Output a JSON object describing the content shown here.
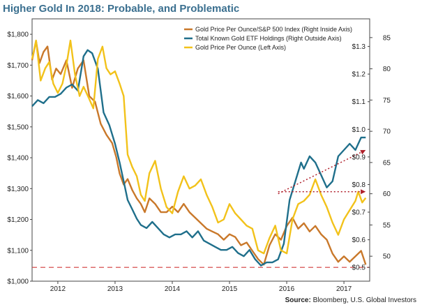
{
  "chart_data": {
    "type": "line",
    "title": "Higher Gold In 2018: Probable, and Problematic",
    "source_label": "Source:",
    "source_text": "Bloomberg, U.S. Global Investors",
    "x_ticks": [
      "2012",
      "2013",
      "2014",
      "2015",
      "2016",
      "2017"
    ],
    "x_tick_values": [
      2012.0,
      2013.0,
      2014.0,
      2015.0,
      2016.0,
      2017.0
    ],
    "xlim": [
      2011.55,
      2017.45
    ],
    "left_axis": {
      "ylim": [
        1000,
        1850
      ],
      "ticks": [
        1000,
        1100,
        1200,
        1300,
        1400,
        1500,
        1600,
        1700,
        1800
      ],
      "tick_labels": [
        "$1,000",
        "$1,100",
        "$1,200",
        "$1,300",
        "$1,400",
        "$1,500",
        "$1,600",
        "$1,700",
        "$1,800"
      ]
    },
    "right_inside_axis": {
      "ylim": [
        0.45,
        1.4
      ],
      "ticks": [
        0.5,
        0.6,
        0.7,
        0.8,
        0.9,
        1.0,
        1.1,
        1.2,
        1.3
      ],
      "tick_labels": [
        "$0.5",
        "$0.6",
        "$0.7",
        "$0.8",
        "$0.9",
        "$1.0",
        "$1.1",
        "$1.2",
        "$1.3"
      ]
    },
    "right_outside_axis": {
      "ylim": [
        46,
        88
      ],
      "ticks": [
        50,
        55,
        60,
        65,
        70,
        75,
        80,
        85
      ],
      "tick_labels": [
        "50",
        "55",
        "60",
        "65",
        "70",
        "75",
        "80",
        "85"
      ]
    },
    "series": [
      {
        "name": "Gold Price Per Ounce/S&P 500 Index (Right Inside Axis)",
        "axis": "right_inside",
        "color": "#c9782a",
        "x": [
          2011.55,
          2011.62,
          2011.68,
          2011.75,
          2011.82,
          2011.9,
          2011.97,
          2012.05,
          2012.15,
          2012.25,
          2012.35,
          2012.45,
          2012.55,
          2012.65,
          2012.75,
          2012.85,
          2012.95,
          2013.02,
          2013.08,
          2013.15,
          2013.22,
          2013.3,
          2013.38,
          2013.45,
          2013.52,
          2013.6,
          2013.7,
          2013.8,
          2013.9,
          2014.0,
          2014.1,
          2014.2,
          2014.3,
          2014.4,
          2014.5,
          2014.6,
          2014.7,
          2014.8,
          2014.9,
          2015.0,
          2015.1,
          2015.2,
          2015.3,
          2015.4,
          2015.5,
          2015.6,
          2015.7,
          2015.8,
          2015.9,
          2016.0,
          2016.1,
          2016.2,
          2016.3,
          2016.4,
          2016.5,
          2016.6,
          2016.7,
          2016.8,
          2016.9,
          2017.0,
          2017.1,
          2017.2,
          2017.3,
          2017.38
        ],
        "values": [
          1.25,
          1.32,
          1.24,
          1.28,
          1.3,
          1.18,
          1.22,
          1.2,
          1.25,
          1.15,
          1.22,
          1.25,
          1.12,
          1.1,
          1.02,
          0.98,
          0.95,
          0.9,
          0.84,
          0.8,
          0.82,
          0.78,
          0.75,
          0.73,
          0.7,
          0.75,
          0.73,
          0.7,
          0.7,
          0.72,
          0.7,
          0.73,
          0.7,
          0.68,
          0.66,
          0.64,
          0.63,
          0.62,
          0.6,
          0.62,
          0.61,
          0.58,
          0.59,
          0.56,
          0.53,
          0.51,
          0.58,
          0.62,
          0.6,
          0.65,
          0.68,
          0.64,
          0.66,
          0.63,
          0.65,
          0.62,
          0.6,
          0.55,
          0.52,
          0.54,
          0.52,
          0.54,
          0.56,
          0.51
        ]
      },
      {
        "name": "Total Known Gold ETF Holdings (Right Outside Axis)",
        "axis": "right_outside",
        "color": "#1f6f8b",
        "x": [
          2011.55,
          2011.65,
          2011.75,
          2011.85,
          2011.95,
          2012.05,
          2012.15,
          2012.25,
          2012.35,
          2012.45,
          2012.52,
          2012.6,
          2012.7,
          2012.8,
          2012.9,
          2013.0,
          2013.08,
          2013.15,
          2013.22,
          2013.3,
          2013.38,
          2013.45,
          2013.55,
          2013.65,
          2013.75,
          2013.85,
          2013.95,
          2014.05,
          2014.15,
          2014.25,
          2014.35,
          2014.45,
          2014.55,
          2014.65,
          2014.75,
          2014.85,
          2014.95,
          2015.05,
          2015.15,
          2015.25,
          2015.35,
          2015.45,
          2015.55,
          2015.65,
          2015.75,
          2015.85,
          2015.95,
          2016.05,
          2016.15,
          2016.25,
          2016.3,
          2016.4,
          2016.5,
          2016.6,
          2016.7,
          2016.8,
          2016.9,
          2017.0,
          2017.1,
          2017.2,
          2017.3,
          2017.38
        ],
        "values": [
          74,
          75,
          74.5,
          75.5,
          75.5,
          76,
          77,
          77.5,
          76.5,
          82,
          83,
          82.5,
          80,
          73,
          71,
          68,
          65,
          62,
          59,
          57.5,
          56,
          55,
          54.5,
          55.5,
          54.5,
          53.5,
          53,
          53.5,
          53.5,
          54,
          53,
          54,
          52.5,
          52,
          51.5,
          51,
          51,
          51.5,
          50.5,
          50,
          51,
          49.5,
          48.5,
          49,
          49,
          49.5,
          52,
          59,
          62,
          65,
          64,
          66,
          65,
          63,
          61,
          62,
          66,
          67,
          68,
          67,
          69,
          69
        ]
      },
      {
        "name": "Gold Price Per Ounce (Left Axis)",
        "axis": "left",
        "color": "#f2c21a",
        "x": [
          2011.55,
          2011.62,
          2011.7,
          2011.78,
          2011.85,
          2011.92,
          2012.0,
          2012.08,
          2012.15,
          2012.22,
          2012.3,
          2012.38,
          2012.45,
          2012.55,
          2012.62,
          2012.7,
          2012.78,
          2012.85,
          2012.92,
          2013.0,
          2013.08,
          2013.15,
          2013.22,
          2013.3,
          2013.38,
          2013.45,
          2013.52,
          2013.6,
          2013.7,
          2013.8,
          2013.9,
          2014.0,
          2014.1,
          2014.2,
          2014.3,
          2014.4,
          2014.5,
          2014.6,
          2014.7,
          2014.8,
          2014.9,
          2015.0,
          2015.1,
          2015.2,
          2015.3,
          2015.4,
          2015.5,
          2015.6,
          2015.7,
          2015.8,
          2015.9,
          2016.0,
          2016.1,
          2016.2,
          2016.3,
          2016.4,
          2016.5,
          2016.6,
          2016.7,
          2016.8,
          2016.9,
          2017.0,
          2017.1,
          2017.2,
          2017.25,
          2017.32,
          2017.38
        ],
        "values": [
          1720,
          1780,
          1650,
          1690,
          1710,
          1640,
          1610,
          1640,
          1700,
          1780,
          1670,
          1600,
          1630,
          1590,
          1560,
          1720,
          1760,
          1690,
          1670,
          1680,
          1640,
          1600,
          1410,
          1370,
          1340,
          1280,
          1260,
          1350,
          1390,
          1300,
          1240,
          1220,
          1290,
          1340,
          1300,
          1310,
          1330,
          1280,
          1240,
          1190,
          1200,
          1250,
          1220,
          1200,
          1180,
          1170,
          1100,
          1090,
          1140,
          1180,
          1100,
          1090,
          1200,
          1250,
          1260,
          1280,
          1330,
          1280,
          1240,
          1190,
          1150,
          1200,
          1230,
          1260,
          1290,
          1255,
          1270
        ]
      }
    ],
    "reference_lines": [
      {
        "axis": "right_inside",
        "value": 0.5,
        "color": "#d23a3a",
        "style": "dashed"
      }
    ],
    "annotations": [
      {
        "type": "arrow",
        "axis": "right_outside",
        "from": [
          2015.85,
          60
        ],
        "to": [
          2017.38,
          67
        ],
        "color": "#b0202a"
      },
      {
        "type": "arrow",
        "axis": "left",
        "from": [
          2015.85,
          1290
        ],
        "to": [
          2017.38,
          1290
        ],
        "color": "#b0202a"
      }
    ]
  }
}
